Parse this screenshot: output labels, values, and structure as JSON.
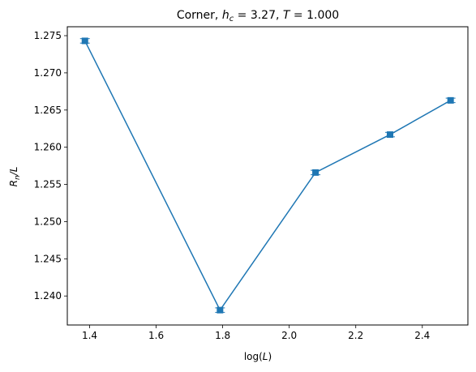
{
  "chart_data": {
    "type": "line",
    "title": {
      "prefix": "Corner, ",
      "h": "h",
      "h_sub": "c",
      "h_eq": " = 3.27, ",
      "t": "T",
      "t_eq": " = 1.000"
    },
    "xlabel": {
      "pre": "log(",
      "var": "L",
      "post": ")"
    },
    "ylabel": {
      "var": "R",
      "sub": "n",
      "post": "/L"
    },
    "xlim": [
      1.333,
      2.537
    ],
    "ylim": [
      1.2361,
      1.2762
    ],
    "xticks": [
      1.4,
      1.6,
      1.8,
      2.0,
      2.2,
      2.4
    ],
    "xtick_labels": [
      "1.4",
      "1.6",
      "1.8",
      "2.0",
      "2.2",
      "2.4"
    ],
    "yticks": [
      1.24,
      1.245,
      1.25,
      1.255,
      1.26,
      1.265,
      1.27,
      1.275
    ],
    "ytick_labels": [
      "1.240",
      "1.245",
      "1.250",
      "1.255",
      "1.260",
      "1.265",
      "1.270",
      "1.275"
    ],
    "series": [
      {
        "x": [
          1.386,
          1.792,
          2.079,
          2.303,
          2.485
        ],
        "y": [
          1.2743,
          1.2381,
          1.2566,
          1.2617,
          1.2663
        ],
        "yerr": [
          0.0003,
          0.0003,
          0.0003,
          0.0003,
          0.0003
        ],
        "marker": "square",
        "color": "#1f77b4"
      }
    ],
    "grid": false,
    "legend": "none"
  }
}
